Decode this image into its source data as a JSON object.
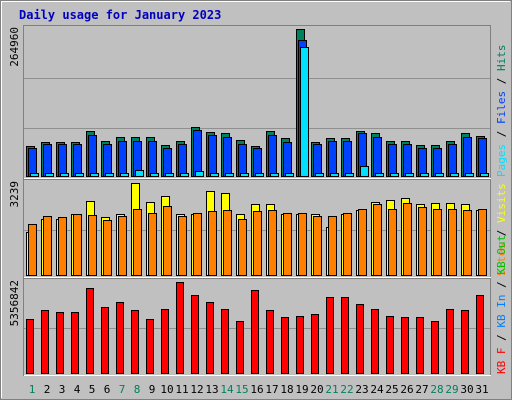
{
  "chart_data": {
    "type": "bar",
    "title": "Daily usage for January 2023",
    "colors": {
      "background": "#C0C0C0",
      "frame_outer": "#808080",
      "plot_bg": "#C0C0C0",
      "title": "#0000C0",
      "hits": "#00805C",
      "files": "#0040FF",
      "pages": "#00E0FF",
      "visits": "#FFFF00",
      "sites": "#FF8000",
      "kbytes": "#FF0000",
      "kb_in": "#0080FF",
      "kb_out": "#00C000",
      "day_weekday": "#000000",
      "day_weekend": "#00805C"
    },
    "days": [
      {
        "label": "1",
        "weekend": true
      },
      {
        "label": "2",
        "weekend": false
      },
      {
        "label": "3",
        "weekend": false
      },
      {
        "label": "4",
        "weekend": false
      },
      {
        "label": "5",
        "weekend": false
      },
      {
        "label": "6",
        "weekend": false
      },
      {
        "label": "7",
        "weekend": true
      },
      {
        "label": "8",
        "weekend": true
      },
      {
        "label": "9",
        "weekend": false
      },
      {
        "label": "10",
        "weekend": false
      },
      {
        "label": "11",
        "weekend": false
      },
      {
        "label": "12",
        "weekend": false
      },
      {
        "label": "13",
        "weekend": false
      },
      {
        "label": "14",
        "weekend": true
      },
      {
        "label": "15",
        "weekend": true
      },
      {
        "label": "16",
        "weekend": false
      },
      {
        "label": "17",
        "weekend": false
      },
      {
        "label": "18",
        "weekend": false
      },
      {
        "label": "19",
        "weekend": false
      },
      {
        "label": "20",
        "weekend": false
      },
      {
        "label": "21",
        "weekend": true
      },
      {
        "label": "22",
        "weekend": true
      },
      {
        "label": "23",
        "weekend": false
      },
      {
        "label": "24",
        "weekend": false
      },
      {
        "label": "25",
        "weekend": false
      },
      {
        "label": "26",
        "weekend": false
      },
      {
        "label": "27",
        "weekend": false
      },
      {
        "label": "28",
        "weekend": true
      },
      {
        "label": "29",
        "weekend": true
      },
      {
        "label": "30",
        "weekend": false
      },
      {
        "label": "31",
        "weekend": false
      }
    ],
    "panels": [
      {
        "id": "hits",
        "max_label": "264960",
        "max": 264960,
        "legend": [
          {
            "text": "Pages",
            "color_key": "pages"
          },
          {
            "text": " / ",
            "color_key": "day_weekday"
          },
          {
            "text": "Files",
            "color_key": "files"
          },
          {
            "text": " / ",
            "color_key": "day_weekday"
          },
          {
            "text": "Hits",
            "color_key": "hits"
          }
        ],
        "series": [
          {
            "name": "Hits",
            "color_key": "hits",
            "values": [
              55000,
              63000,
              63000,
              63000,
              83000,
              65000,
              71000,
              71000,
              71000,
              58000,
              65000,
              90000,
              81000,
              78000,
              66000,
              56000,
              83000,
              69000,
              264960,
              63000,
              69000,
              69000,
              83000,
              78000,
              65000,
              65000,
              58000,
              58000,
              65000,
              78000,
              74000
            ]
          },
          {
            "name": "Files",
            "color_key": "files",
            "values": [
              52000,
              59000,
              59000,
              59000,
              76000,
              59000,
              65000,
              65000,
              65000,
              52000,
              59000,
              84000,
              76000,
              72000,
              59000,
              52000,
              76000,
              62000,
              245000,
              59000,
              65000,
              65000,
              78000,
              72000,
              59000,
              59000,
              52000,
              52000,
              59000,
              72000,
              69000
            ]
          },
          {
            "name": "Pages",
            "color_key": "pages",
            "values": [
              7000,
              7000,
              7000,
              7000,
              7000,
              7000,
              7000,
              13000,
              7000,
              7000,
              7000,
              10000,
              7000,
              7000,
              7000,
              7000,
              7000,
              7000,
              232000,
              7000,
              7000,
              7000,
              20000,
              7000,
              7000,
              7000,
              7000,
              7000,
              7000,
              7000,
              7000
            ]
          }
        ]
      },
      {
        "id": "visits",
        "max_label": "3239",
        "max": 3239,
        "legend": [
          {
            "text": "Sites",
            "color_key": "sites"
          },
          {
            "text": " / ",
            "color_key": "day_weekday"
          },
          {
            "text": "Visits",
            "color_key": "visits"
          }
        ],
        "series": [
          {
            "name": "Visits",
            "color_key": "visits",
            "values": [
              1520,
              2000,
              2000,
              2150,
              2620,
              2050,
              2150,
              3239,
              2570,
              2800,
              2150,
              2150,
              2950,
              2900,
              2150,
              2500,
              2500,
              2150,
              2150,
              2150,
              1720,
              2150,
              2300,
              2570,
              2650,
              2700,
              2500,
              2550,
              2550,
              2500,
              2300
            ]
          },
          {
            "name": "Sites",
            "color_key": "sites",
            "values": [
              1800,
              2100,
              2050,
              2150,
              2130,
              1950,
              2100,
              2320,
              2200,
              2450,
              2080,
              2200,
              2250,
              2300,
              2000,
              2250,
              2300,
              2200,
              2180,
              2100,
              2100,
              2200,
              2350,
              2500,
              2350,
              2550,
              2400,
              2350,
              2320,
              2300,
              2350
            ]
          }
        ]
      },
      {
        "id": "kbytes",
        "max_label": "5356842",
        "max": 5356842,
        "legend": [
          {
            "text": "KB F",
            "color_key": "kbytes"
          },
          {
            "text": " / ",
            "color_key": "day_weekday"
          },
          {
            "text": "KB In",
            "color_key": "kb_in"
          },
          {
            "text": " / ",
            "color_key": "day_weekday"
          },
          {
            "text": "KB Out",
            "color_key": "kb_out"
          }
        ],
        "series": [
          {
            "name": "KB F",
            "color_key": "kbytes",
            "values": [
              3200000,
              3700000,
              3600000,
              3600000,
              5000000,
              3900000,
              4200000,
              3700000,
              3200000,
              3800000,
              5356842,
              4600000,
              4200000,
              3800000,
              3100000,
              4900000,
              3700000,
              3300000,
              3400000,
              3500000,
              4500000,
              4500000,
              4100000,
              3800000,
              3400000,
              3300000,
              3300000,
              3100000,
              3800000,
              3700000,
              4600000
            ]
          }
        ]
      }
    ]
  }
}
